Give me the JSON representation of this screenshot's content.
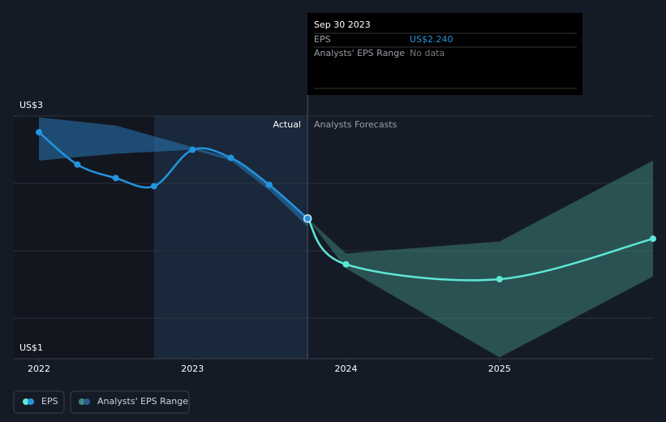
{
  "chart_data": {
    "type": "line",
    "xlim": [
      2021.836,
      2026.0
    ],
    "xticks": [
      2022,
      2023,
      2024,
      2025
    ],
    "ylim": [
      1.2,
      3
    ],
    "yticks": [
      {
        "value": 3,
        "label": "US$3"
      },
      {
        "value": 1.2,
        "label": "US$1"
      }
    ],
    "ygrid": [
      3,
      2.5,
      2,
      1.5
    ],
    "highlight_x": [
      2022.75,
      2023.75
    ],
    "period_labels": {
      "actual": "Actual",
      "forecast": "Analysts Forecasts"
    },
    "series": [
      {
        "name": "EPS",
        "color": "#2394df",
        "x": [
          2022,
          2022.25,
          2022.5,
          2022.75,
          2023,
          2023.25,
          2023.5,
          2023.75
        ],
        "values": [
          2.88,
          2.64,
          2.54,
          2.48,
          2.75,
          2.69,
          2.49,
          2.24
        ]
      },
      {
        "color": "#5ee7d6",
        "x": [
          2023.75,
          2024,
          2025,
          2026
        ],
        "values": [
          2.24,
          1.9,
          1.79,
          2.09
        ]
      }
    ],
    "ranges": [
      {
        "name": "Analysts' EPS Range",
        "color": "#2a7fc4",
        "x": [
          2022,
          2022.5,
          2023,
          2023.25,
          2023.5,
          2023.75
        ],
        "high": [
          2.99,
          2.93,
          2.77,
          2.69,
          2.5,
          2.24
        ],
        "low": [
          2.67,
          2.72,
          2.75,
          2.67,
          2.45,
          2.18
        ]
      },
      {
        "color": "#3f8a80",
        "x": [
          2023.75,
          2024,
          2025,
          2026
        ],
        "high": [
          2.24,
          1.98,
          2.07,
          2.67
        ],
        "low": [
          2.24,
          1.87,
          1.21,
          1.81
        ]
      }
    ],
    "tooltip": {
      "date": "Sep 30 2023",
      "rows": [
        {
          "label": "EPS",
          "value": "US$2.240"
        },
        {
          "label": "Analysts' EPS Range",
          "value": "No data"
        }
      ]
    }
  }
}
